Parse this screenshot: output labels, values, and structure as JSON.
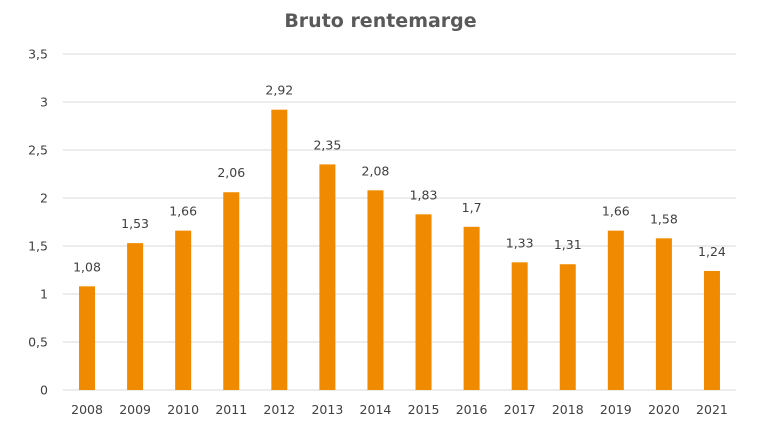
{
  "chart_data": {
    "type": "bar",
    "title": "Bruto rentemarge",
    "categories": [
      "2008",
      "2009",
      "2010",
      "2011",
      "2012",
      "2013",
      "2014",
      "2015",
      "2016",
      "2017",
      "2018",
      "2019",
      "2020",
      "2021"
    ],
    "values": [
      1.08,
      1.53,
      1.66,
      2.06,
      2.92,
      2.35,
      2.08,
      1.83,
      1.7,
      1.33,
      1.31,
      1.66,
      1.58,
      1.24
    ],
    "data_labels": [
      "1,08",
      "1,53",
      "1,66",
      "2,06",
      "2,92",
      "2,35",
      "2,08",
      "1,83",
      "1,7",
      "1,33",
      "1,31",
      "1,66",
      "1,58",
      "1,24"
    ],
    "ylim": [
      0,
      3.5
    ],
    "y_ticks": [
      0,
      0.5,
      1,
      1.5,
      2,
      2.5,
      3,
      3.5
    ],
    "y_tick_labels": [
      "0",
      "0,5",
      "1",
      "1,5",
      "2",
      "2,5",
      "3",
      "3,5"
    ],
    "xlabel": "",
    "ylabel": "",
    "grid": true,
    "legend": "none",
    "bar_color": "#f08a00",
    "grid_color": "#d9d9d9"
  }
}
